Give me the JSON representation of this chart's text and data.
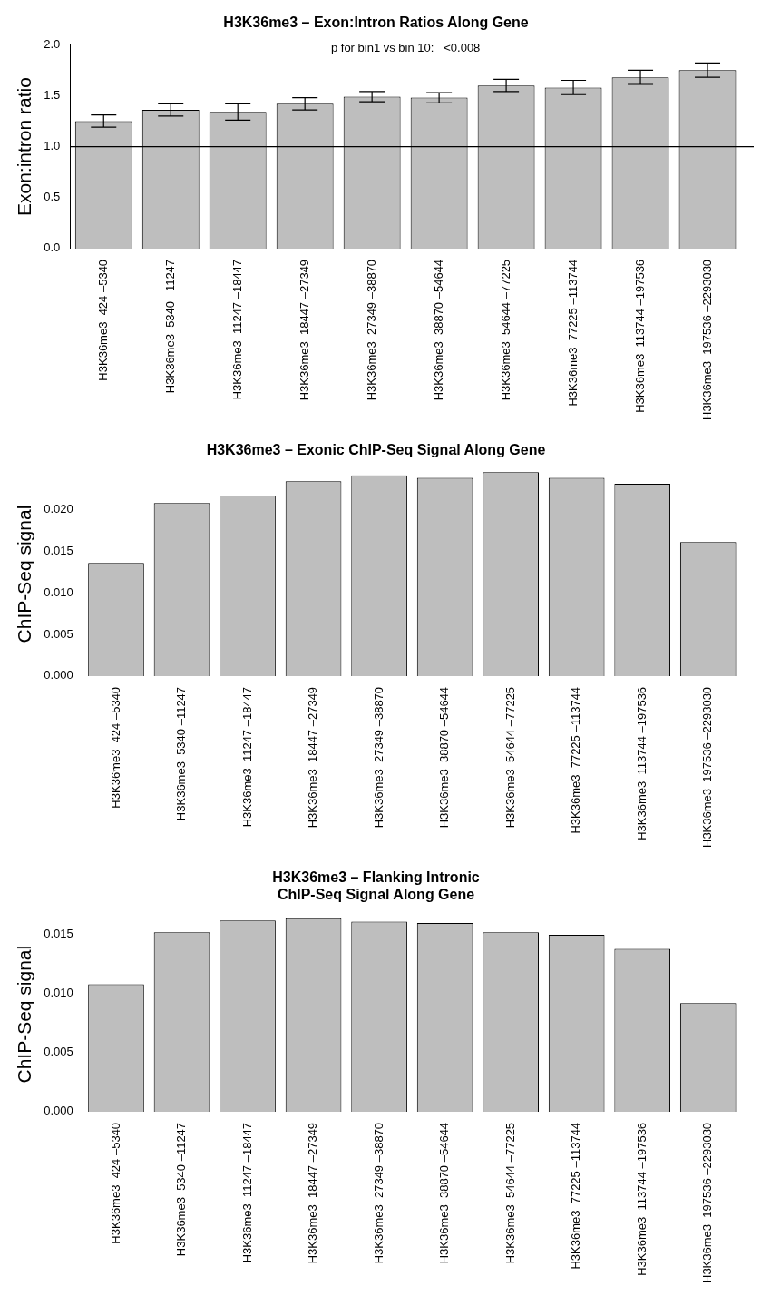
{
  "chart_data": [
    {
      "type": "bar",
      "title": "H3K36me3 – Exon:Intron Ratios Along Gene",
      "ylabel": "Exon:intron ratio",
      "categories": [
        "H3K36me3  424 –5340",
        "H3K36me3  5340 –11247",
        "H3K36me3  11247 –18447",
        "H3K36me3  18447 –27349",
        "H3K36me3  27349 –38870",
        "H3K36me3  38870 –54644",
        "H3K36me3  54644 –77225",
        "H3K36me3  77225 –113744",
        "H3K36me3  113744 –197536",
        "H3K36me3  197536 –2293030"
      ],
      "values": [
        1.25,
        1.36,
        1.34,
        1.42,
        1.49,
        1.48,
        1.6,
        1.58,
        1.68,
        1.75
      ],
      "errors": [
        0.06,
        0.06,
        0.08,
        0.06,
        0.05,
        0.05,
        0.06,
        0.07,
        0.07,
        0.07
      ],
      "color": "#bebebe",
      "ylim": [
        0,
        2.0
      ],
      "yticks": [
        {
          "value": 0,
          "label": "0.0"
        },
        0.5,
        {
          "value": 1,
          "label": "1.0"
        },
        1.5,
        {
          "value": 2,
          "label": "2.0"
        }
      ],
      "ref_lines": [
        {
          "axis": "y",
          "value": 1,
          "color": "#000000"
        }
      ],
      "annotations": [
        "p for bin1 vs bin 10:   <0.008"
      ],
      "grid": false,
      "legend": false
    },
    {
      "type": "bar",
      "title": "H3K36me3 – Exonic ChIP-Seq Signal Along Gene",
      "ylabel": "ChIP-Seq signal",
      "categories": [
        "H3K36me3  424 –5340",
        "H3K36me3  5340 –11247",
        "H3K36me3  11247 –18447",
        "H3K36me3  18447 –27349",
        "H3K36me3  27349 –38870",
        "H3K36me3  38870 –54644",
        "H3K36me3  54644 –77225",
        "H3K36me3  77225 –113744",
        "H3K36me3  113744 –197536",
        "H3K36me3  197536 –2293030"
      ],
      "values": [
        0.0136,
        0.0208,
        0.0217,
        0.0234,
        0.0241,
        0.0238,
        0.0245,
        0.0238,
        0.0231,
        0.0161
      ],
      "color": "#bebebe",
      "ylim": [
        0,
        0.0245
      ],
      "yticks": [
        {
          "value": 0,
          "label": "0.000"
        },
        0.005,
        {
          "value": 0.01,
          "label": "0.010"
        },
        0.015,
        {
          "value": 0.02,
          "label": "0.020"
        }
      ],
      "grid": false,
      "legend": false
    },
    {
      "type": "bar",
      "title": "H3K36me3 – Flanking Intronic\nChIP-Seq Signal Along Gene",
      "ylabel": "ChIP-Seq signal",
      "categories": [
        "H3K36me3  424 –5340",
        "H3K36me3  5340 –11247",
        "H3K36me3  11247 –18447",
        "H3K36me3  18447 –27349",
        "H3K36me3  27349 –38870",
        "H3K36me3  38870 –54644",
        "H3K36me3  54644 –77225",
        "H3K36me3  77225 –113744",
        "H3K36me3  113744 –197536",
        "H3K36me3  197536 –2293030"
      ],
      "values": [
        0.0108,
        0.0152,
        0.0162,
        0.0164,
        0.0161,
        0.016,
        0.0152,
        0.015,
        0.0138,
        0.0092
      ],
      "color": "#bebebe",
      "ylim": [
        0,
        0.0165
      ],
      "yticks": [
        {
          "value": 0,
          "label": "0.000"
        },
        0.005,
        {
          "value": 0.01,
          "label": "0.010"
        },
        0.015
      ],
      "grid": false,
      "legend": false
    }
  ]
}
